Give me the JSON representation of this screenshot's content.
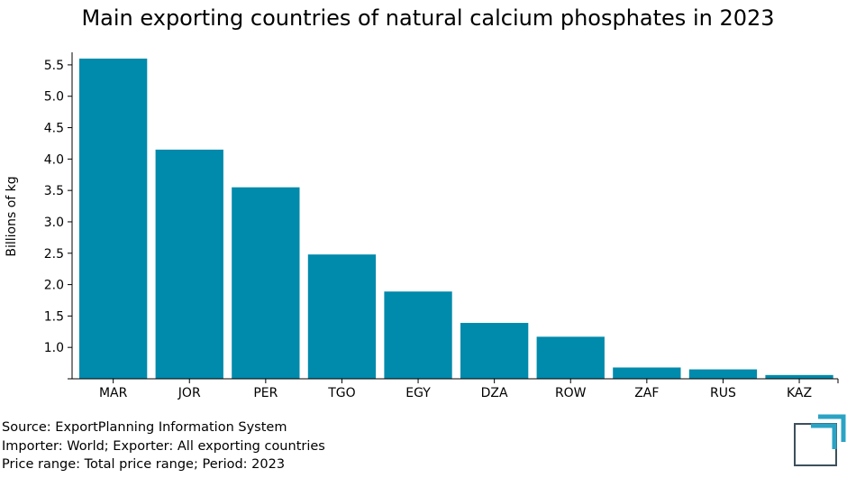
{
  "chart_data": {
    "type": "bar",
    "title": "Main exporting countries of natural calcium phosphates in 2023",
    "xlabel": "",
    "ylabel": "Billions of kg",
    "categories": [
      "MAR",
      "JOR",
      "PER",
      "TGO",
      "EGY",
      "DZA",
      "ROW",
      "ZAF",
      "RUS",
      "KAZ"
    ],
    "values": [
      5.6,
      4.15,
      3.55,
      2.48,
      1.89,
      1.39,
      1.17,
      0.68,
      0.65,
      0.56
    ],
    "ylim": [
      0.5,
      5.7
    ],
    "yticks": [
      1.0,
      1.5,
      2.0,
      2.5,
      3.0,
      3.5,
      4.0,
      4.5,
      5.0,
      5.5
    ],
    "bar_color": "#008aab",
    "grid": false,
    "legend": "none"
  },
  "footer": {
    "source": "Source: ExportPlanning Information System",
    "filter": "Importer: World; Exporter: All exporting countries",
    "range": "Price range: Total price range; Period: 2023"
  },
  "logo": {
    "icon": "exportplanning-logo-icon",
    "color": "#2aa3c4",
    "dark": "#3d4f5c"
  }
}
